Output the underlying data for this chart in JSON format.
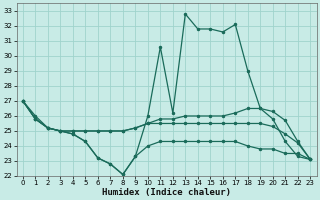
{
  "xlabel": "Humidex (Indice chaleur)",
  "xlim": [
    -0.5,
    23.5
  ],
  "ylim": [
    22,
    33.5
  ],
  "xticks": [
    0,
    1,
    2,
    3,
    4,
    5,
    6,
    7,
    8,
    9,
    10,
    11,
    12,
    13,
    14,
    15,
    16,
    17,
    18,
    19,
    20,
    21,
    22,
    23
  ],
  "yticks": [
    22,
    23,
    24,
    25,
    26,
    27,
    28,
    29,
    30,
    31,
    32,
    33
  ],
  "bg_color": "#c8ebe6",
  "grid_color": "#a0d4cc",
  "line_color": "#1a6b5a",
  "lines": [
    {
      "x": [
        0,
        1,
        2,
        3,
        4,
        5,
        6,
        7,
        8,
        9,
        10,
        11,
        12,
        13,
        14,
        15,
        16,
        17,
        18,
        19,
        20,
        21,
        22,
        23
      ],
      "y": [
        27,
        26,
        25.2,
        25.0,
        24.8,
        24.3,
        23.2,
        22.8,
        22.1,
        23.3,
        26.0,
        30.6,
        26.2,
        32.8,
        31.8,
        31.8,
        31.6,
        32.1,
        29.0,
        26.5,
        25.8,
        24.3,
        23.3,
        23.1
      ]
    },
    {
      "x": [
        0,
        1,
        2,
        3,
        4,
        5,
        6,
        7,
        8,
        9,
        10,
        11,
        12,
        13,
        14,
        15,
        16,
        17,
        18,
        19,
        20,
        21,
        22,
        23
      ],
      "y": [
        27.0,
        25.8,
        25.2,
        25.0,
        25.0,
        25.0,
        25.0,
        25.0,
        25.0,
        25.2,
        25.5,
        25.8,
        25.8,
        26.0,
        26.0,
        26.0,
        26.0,
        26.2,
        26.5,
        26.5,
        26.3,
        25.7,
        24.3,
        23.1
      ]
    },
    {
      "x": [
        0,
        1,
        2,
        3,
        4,
        5,
        6,
        7,
        8,
        9,
        10,
        11,
        12,
        13,
        14,
        15,
        16,
        17,
        18,
        19,
        20,
        21,
        22,
        23
      ],
      "y": [
        27.0,
        25.8,
        25.2,
        25.0,
        25.0,
        25.0,
        25.0,
        25.0,
        25.0,
        25.2,
        25.5,
        25.5,
        25.5,
        25.5,
        25.5,
        25.5,
        25.5,
        25.5,
        25.5,
        25.5,
        25.3,
        24.8,
        24.2,
        23.1
      ]
    },
    {
      "x": [
        0,
        1,
        2,
        3,
        4,
        5,
        6,
        7,
        8,
        9,
        10,
        11,
        12,
        13,
        14,
        15,
        16,
        17,
        18,
        19,
        20,
        21,
        22,
        23
      ],
      "y": [
        27.0,
        25.8,
        25.2,
        25.0,
        24.8,
        24.3,
        23.2,
        22.8,
        22.1,
        23.3,
        24.0,
        24.3,
        24.3,
        24.3,
        24.3,
        24.3,
        24.3,
        24.3,
        24.0,
        23.8,
        23.8,
        23.5,
        23.5,
        23.1
      ]
    }
  ]
}
